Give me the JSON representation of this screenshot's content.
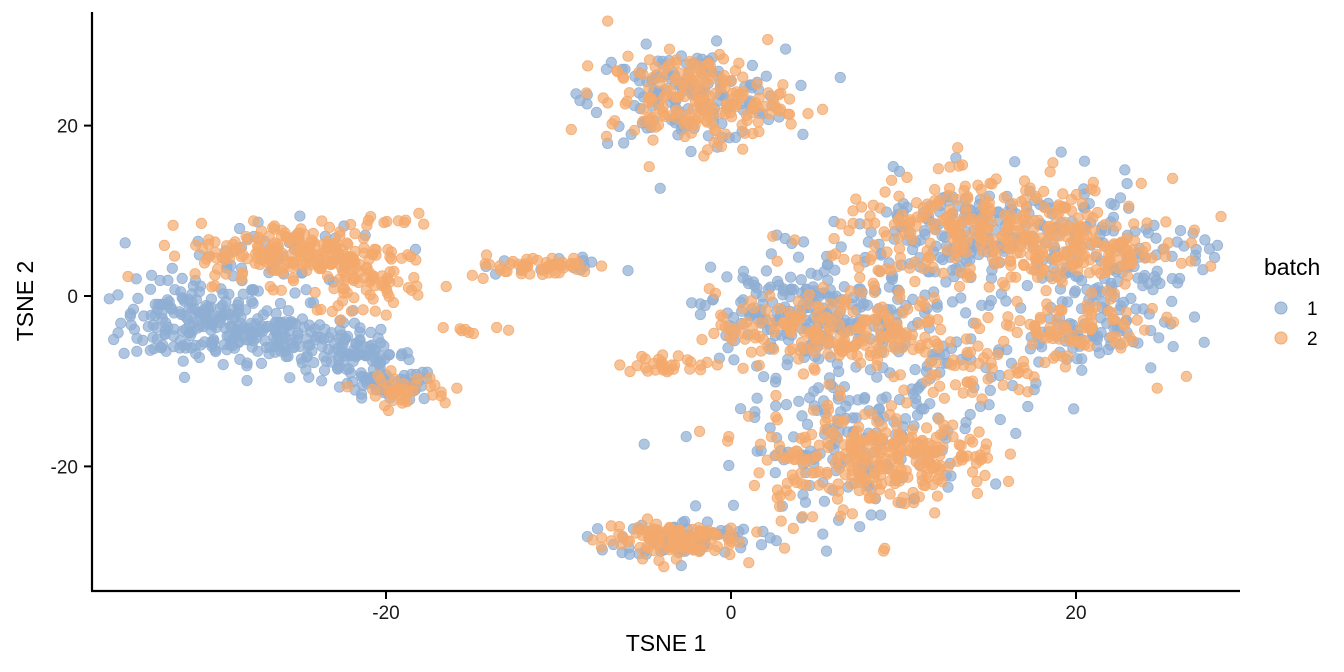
{
  "chart_data": {
    "type": "scatter",
    "title": "",
    "xlabel": "TSNE 1",
    "ylabel": "TSNE 2",
    "xlim": [
      -37,
      30
    ],
    "ylim": [
      -34,
      34
    ],
    "x_ticks": [
      -20,
      0,
      20
    ],
    "y_ticks": [
      -20,
      0,
      20
    ],
    "grid": false,
    "legend": {
      "title": "batch",
      "position": "right",
      "entries": [
        "1",
        "2"
      ]
    },
    "colors": {
      "1": "#8FAED3",
      "2": "#F4A96C"
    },
    "point_alpha": 0.7,
    "series": [
      {
        "name": "1",
        "clusters": [
          {
            "cx": -31,
            "cy": -3,
            "sx": 2.2,
            "sy": 2.5,
            "n": 170
          },
          {
            "cx": -26,
            "cy": -4.5,
            "sx": 2.0,
            "sy": 1.6,
            "n": 110
          },
          {
            "cx": -22,
            "cy": -7,
            "sx": 1.8,
            "sy": 1.4,
            "n": 80
          },
          {
            "cx": -20,
            "cy": -10.5,
            "sx": 1.5,
            "sy": 1.0,
            "n": 55
          },
          {
            "cx": -26,
            "cy": 4,
            "sx": 3.2,
            "sy": 2.2,
            "n": 55
          },
          {
            "cx": -2.5,
            "cy": 23.5,
            "sx": 2.8,
            "sy": 2.7,
            "n": 160
          },
          {
            "cx": -2.5,
            "cy": -28.5,
            "sx": 2.0,
            "sy": 1.1,
            "n": 90
          },
          {
            "cx": 2.5,
            "cy": -2,
            "sx": 2.2,
            "sy": 2.8,
            "n": 120
          },
          {
            "cx": 8,
            "cy": -3,
            "sx": 3.5,
            "sy": 3.5,
            "n": 140
          },
          {
            "cx": 7,
            "cy": -18,
            "sx": 3.2,
            "sy": 3.8,
            "n": 150
          },
          {
            "cx": 15,
            "cy": 7,
            "sx": 4.8,
            "sy": 3.4,
            "n": 230
          },
          {
            "cx": 22,
            "cy": 3,
            "sx": 2.6,
            "sy": 3.0,
            "n": 100
          },
          {
            "cx": 20,
            "cy": -5,
            "sx": 2.6,
            "sy": 1.6,
            "n": 60
          },
          {
            "cx": -11,
            "cy": 3.5,
            "sx": 1.8,
            "sy": 0.5,
            "n": 15
          },
          {
            "cx": 12,
            "cy": -12,
            "sx": 3.0,
            "sy": 3.0,
            "n": 50
          }
        ]
      },
      {
        "name": "2",
        "clusters": [
          {
            "cx": -25,
            "cy": 5,
            "sx": 3.0,
            "sy": 1.8,
            "n": 210
          },
          {
            "cx": -21,
            "cy": 1.5,
            "sx": 1.6,
            "sy": 2.0,
            "n": 60
          },
          {
            "cx": -20,
            "cy": 9,
            "sx": 0.8,
            "sy": 0.7,
            "n": 10
          },
          {
            "cx": -19,
            "cy": -11,
            "sx": 1.4,
            "sy": 0.9,
            "n": 40
          },
          {
            "cx": -11.5,
            "cy": 3.5,
            "sx": 1.9,
            "sy": 0.6,
            "n": 50
          },
          {
            "cx": -15,
            "cy": -4,
            "sx": 0.8,
            "sy": 0.4,
            "n": 8
          },
          {
            "cx": -2,
            "cy": 23,
            "sx": 2.6,
            "sy": 2.6,
            "n": 190
          },
          {
            "cx": -3.5,
            "cy": -28.5,
            "sx": 2.0,
            "sy": 1.1,
            "n": 110
          },
          {
            "cx": 6,
            "cy": -4,
            "sx": 3.5,
            "sy": 2.3,
            "n": 200
          },
          {
            "cx": -3,
            "cy": -8,
            "sx": 1.8,
            "sy": 0.5,
            "n": 30
          },
          {
            "cx": 7,
            "cy": -19,
            "sx": 3.0,
            "sy": 3.5,
            "n": 200
          },
          {
            "cx": 11,
            "cy": -19,
            "sx": 2.2,
            "sy": 2.0,
            "n": 90
          },
          {
            "cx": 15,
            "cy": 7.5,
            "sx": 4.5,
            "sy": 3.0,
            "n": 300
          },
          {
            "cx": 21,
            "cy": 5,
            "sx": 2.5,
            "sy": 2.0,
            "n": 90
          },
          {
            "cx": 20,
            "cy": -4,
            "sx": 2.5,
            "sy": 1.8,
            "n": 80
          },
          {
            "cx": 14,
            "cy": -9,
            "sx": 2.5,
            "sy": 2.0,
            "n": 50
          }
        ]
      }
    ]
  }
}
